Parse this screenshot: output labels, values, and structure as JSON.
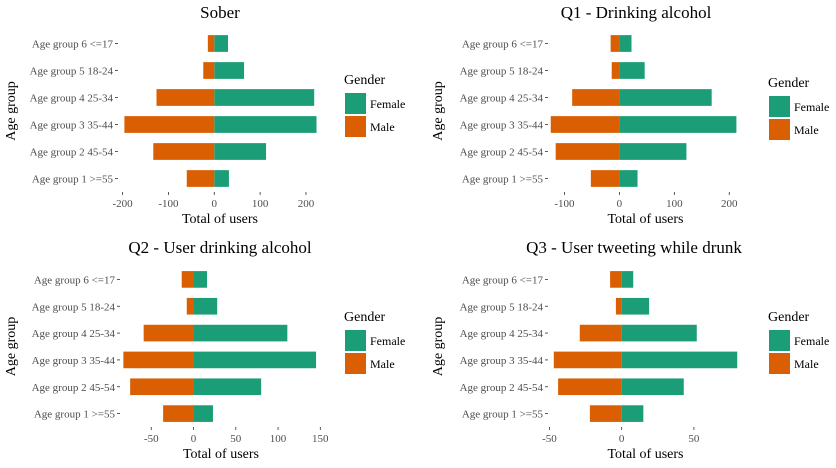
{
  "chart_data": [
    {
      "type": "bar",
      "orientation": "horizontal",
      "stacked": "diverging",
      "title": "Sober",
      "xlabel": "Total of users",
      "ylabel": "Age group",
      "categories": [
        "Age group 1 >=55",
        "Age group 2 45-54",
        "Age group 3 35-44",
        "Age group 4 25-34",
        "Age group 5 18-24",
        "Age group 6 <=17"
      ],
      "series": [
        {
          "name": "Female",
          "values": [
            32,
            113,
            223,
            218,
            65,
            30
          ]
        },
        {
          "name": "Male",
          "values": [
            -60,
            -133,
            -196,
            -126,
            -24,
            -14
          ]
        }
      ],
      "xlim": [
        -210,
        235
      ],
      "xticks": [
        -200,
        -100,
        0,
        100,
        200
      ],
      "xtick_labels": [
        "-200",
        "-100",
        "0",
        "100",
        "200"
      ],
      "grid": false,
      "legend": {
        "title": "Gender",
        "position": "right",
        "entries": [
          "Female",
          "Male"
        ]
      }
    },
    {
      "type": "bar",
      "orientation": "horizontal",
      "stacked": "diverging",
      "title": "Q1 - Drinking alcohol",
      "xlabel": "Total of users",
      "ylabel": "Age group",
      "categories": [
        "Age group 1 >=55",
        "Age group 2 45-54",
        "Age group 3 35-44",
        "Age group 4 25-34",
        "Age group 5 18-24",
        "Age group 6 <=17"
      ],
      "series": [
        {
          "name": "Female",
          "values": [
            33,
            122,
            213,
            168,
            46,
            22
          ]
        },
        {
          "name": "Male",
          "values": [
            -52,
            -116,
            -125,
            -86,
            -14,
            -16
          ]
        }
      ],
      "xlim": [
        -130,
        225
      ],
      "xticks": [
        -100,
        0,
        100,
        200
      ],
      "xtick_labels": [
        "-100",
        "0",
        "100",
        "200"
      ],
      "grid": false,
      "legend": {
        "title": "Gender",
        "position": "right",
        "entries": [
          "Female",
          "Male"
        ]
      }
    },
    {
      "type": "bar",
      "orientation": "horizontal",
      "stacked": "diverging",
      "title": "Q2 - User drinking alcohol",
      "xlabel": "Total of users",
      "ylabel": "Age group",
      "categories": [
        "Age group 1 >=55",
        "Age group 2 45-54",
        "Age group 3 35-44",
        "Age group 4 25-34",
        "Age group 5 18-24",
        "Age group 6 <=17"
      ],
      "series": [
        {
          "name": "Female",
          "values": [
            23,
            80,
            145,
            111,
            28,
            16
          ]
        },
        {
          "name": "Male",
          "values": [
            -36,
            -75,
            -83,
            -59,
            -8,
            -14
          ]
        }
      ],
      "xlim": [
        -87,
        152
      ],
      "xticks": [
        -50,
        0,
        50,
        100,
        150
      ],
      "xtick_labels": [
        "-50",
        "0",
        "50",
        "100",
        "150"
      ],
      "grid": false,
      "legend": {
        "title": "Gender",
        "position": "right",
        "entries": [
          "Female",
          "Male"
        ]
      }
    },
    {
      "type": "bar",
      "orientation": "horizontal",
      "stacked": "diverging",
      "title": "Q3 - User tweeting while drunk",
      "xlabel": "Total of users",
      "ylabel": "Age group",
      "categories": [
        "Age group 1 >=55",
        "Age group 2 45-54",
        "Age group 3 35-44",
        "Age group 4 25-34",
        "Age group 5 18-24",
        "Age group 6 <=17"
      ],
      "series": [
        {
          "name": "Female",
          "values": [
            15,
            43,
            80,
            52,
            19,
            8
          ]
        },
        {
          "name": "Male",
          "values": [
            -22,
            -44,
            -47,
            -29,
            -4,
            -8
          ]
        }
      ],
      "xlim": [
        -51,
        84
      ],
      "xticks": [
        -50,
        0,
        50
      ],
      "xtick_labels": [
        "-50",
        "0",
        "50"
      ],
      "grid": false,
      "legend": {
        "title": "Gender",
        "position": "right",
        "entries": [
          "Female",
          "Male"
        ]
      }
    }
  ],
  "colors": {
    "Female": "#1b9e77",
    "Male": "#d95f02",
    "axis_text": "#4d4d4d",
    "tick": "#333333"
  }
}
